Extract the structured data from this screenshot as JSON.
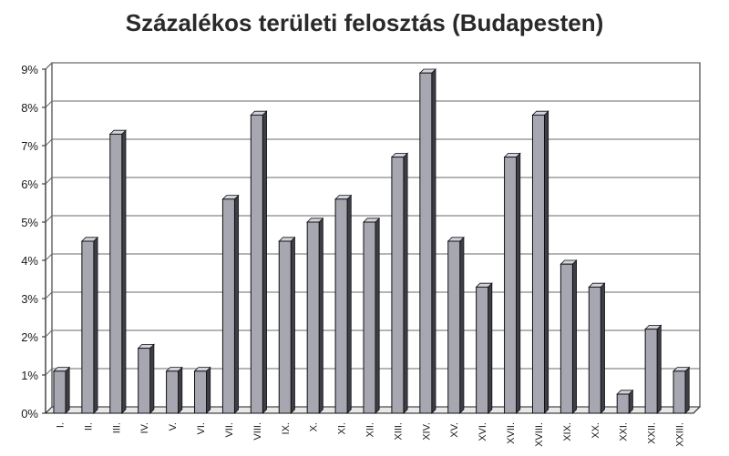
{
  "chart_data": {
    "type": "bar",
    "title": "Százalékos területi felosztás (Budapesten)",
    "xlabel": "",
    "ylabel": "",
    "categories": [
      "I.",
      "II.",
      "III.",
      "IV.",
      "V.",
      "VI.",
      "VII.",
      "VIII.",
      "IX.",
      "X.",
      "XI.",
      "XII.",
      "XIII.",
      "XIV.",
      "XV.",
      "XVI.",
      "XVII.",
      "XVIII.",
      "XIX.",
      "XX.",
      "XXI.",
      "XXII.",
      "XXIII."
    ],
    "values": [
      1.1,
      4.5,
      7.3,
      1.7,
      1.1,
      1.1,
      5.6,
      7.8,
      4.5,
      5.0,
      5.6,
      5.0,
      6.7,
      8.9,
      4.5,
      3.3,
      6.7,
      7.8,
      3.9,
      3.3,
      0.5,
      2.2,
      1.1
    ],
    "ylim": [
      0,
      9
    ],
    "yticks": [
      "0%",
      "1%",
      "2%",
      "3%",
      "4%",
      "5%",
      "6%",
      "7%",
      "8%",
      "9%"
    ],
    "grid": true,
    "legend": "none",
    "colors": {
      "bar": "#a7a7b2",
      "bar_top": "#d2d2dc",
      "bar_side": "#3e3e48",
      "grid": "#6a6a6a",
      "axis": "#1a1a1a",
      "text": "#1a1a1a"
    }
  }
}
